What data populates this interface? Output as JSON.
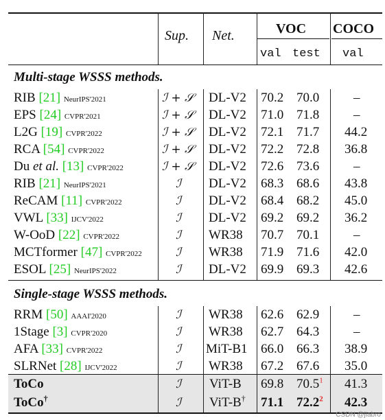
{
  "header": {
    "sup": "Sup.",
    "net": "Net.",
    "voc": "VOC",
    "coco": "COCO",
    "voc_val": "val",
    "voc_test": "test",
    "coco_val": "val"
  },
  "sections": {
    "multi": "Multi-stage WSSS methods.",
    "single": "Single-stage WSSS methods."
  },
  "multi_rows": [
    {
      "method": "RIB",
      "cite": "[21]",
      "venue": "NeurIPS'2021",
      "sup": "I + S",
      "net": "DL-V2",
      "val": "70.2",
      "test": "70.0",
      "coco": "–"
    },
    {
      "method": "EPS",
      "cite": "[24]",
      "venue": "CVPR'2021",
      "sup": "I + S",
      "net": "DL-V2",
      "val": "71.0",
      "test": "71.8",
      "coco": "–"
    },
    {
      "method": "L2G",
      "cite": "[19]",
      "venue": "CVPR'2022",
      "sup": "I + S",
      "net": "DL-V2",
      "val": "72.1",
      "test": "71.7",
      "coco": "44.2"
    },
    {
      "method": "RCA",
      "cite": "[54]",
      "venue": "CVPR'2022",
      "sup": "I + S",
      "net": "DL-V2",
      "val": "72.2",
      "test": "72.8",
      "coco": "36.8"
    },
    {
      "method": "Du et al.",
      "cite": "[13]",
      "venue": "CVPR'2022",
      "sup": "I + S",
      "net": "DL-V2",
      "val": "72.6",
      "test": "73.6",
      "coco": "–"
    },
    {
      "method": "RIB",
      "cite": "[21]",
      "venue": "NeurIPS'2021",
      "sup": "I",
      "net": "DL-V2",
      "val": "68.3",
      "test": "68.6",
      "coco": "43.8"
    },
    {
      "method": "ReCAM",
      "cite": "[11]",
      "venue": "CVPR'2022",
      "sup": "I",
      "net": "DL-V2",
      "val": "68.4",
      "test": "68.2",
      "coco": "45.0"
    },
    {
      "method": "VWL",
      "cite": "[33]",
      "venue": "IJCV'2022",
      "sup": "I",
      "net": "DL-V2",
      "val": "69.2",
      "test": "69.2",
      "coco": "36.2"
    },
    {
      "method": "W-OoD",
      "cite": "[22]",
      "venue": "CVPR'2022",
      "sup": "I",
      "net": "WR38",
      "val": "70.7",
      "test": "70.1",
      "coco": "–"
    },
    {
      "method": "MCTformer",
      "cite": "[47]",
      "venue": "CVPR'2022",
      "sup": "I",
      "net": "WR38",
      "val": "71.9",
      "test": "71.6",
      "coco": "42.0"
    },
    {
      "method": "ESOL",
      "cite": "[25]",
      "venue": "NeurIPS'2022",
      "sup": "I",
      "net": "DL-V2",
      "val": "69.9",
      "test": "69.3",
      "coco": "42.6"
    }
  ],
  "single_rows": [
    {
      "method": "RRM",
      "cite": "[50]",
      "venue": "AAAI'2020",
      "sup": "I",
      "net": "WR38",
      "val": "62.6",
      "test": "62.9",
      "coco": "–"
    },
    {
      "method": "1Stage",
      "cite": "[3]",
      "venue": "CVPR'2020",
      "sup": "I",
      "net": "WR38",
      "val": "62.7",
      "test": "64.3",
      "coco": "–"
    },
    {
      "method": "AFA",
      "cite": "[33]",
      "venue": "CVPR'2022",
      "sup": "I",
      "net": "MiT-B1",
      "val": "66.0",
      "test": "66.3",
      "coco": "38.9"
    },
    {
      "method": "SLRNet",
      "cite": "[28]",
      "venue": "IJCV'2022",
      "sup": "I",
      "net": "WR38",
      "val": "67.2",
      "test": "67.6",
      "coco": "35.0"
    }
  ],
  "toco_rows": [
    {
      "method": "ToCo",
      "dagger": "",
      "sup": "I",
      "net": "ViT-B",
      "net_dagger": "",
      "val": "69.8",
      "test": "70.5",
      "test_mark": "1",
      "coco": "41.3",
      "bold_vals": false
    },
    {
      "method": "ToCo",
      "dagger": "†",
      "sup": "I",
      "net": "ViT-B",
      "net_dagger": "†",
      "val": "71.1",
      "test": "72.2",
      "test_mark": "2",
      "coco": "42.3",
      "bold_vals": true
    }
  ],
  "watermark": "CSDN @jiabro"
}
